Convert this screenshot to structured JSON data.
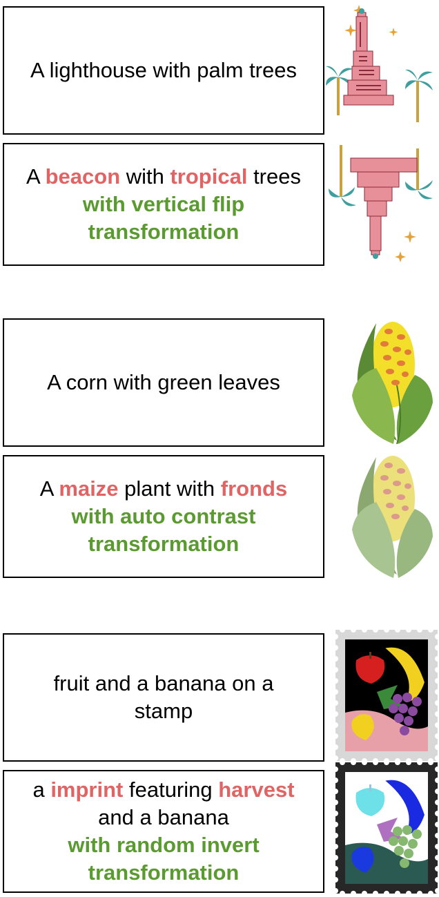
{
  "pairs": [
    {
      "original": "A lighthouse with palm trees",
      "augmented": {
        "a": "A ",
        "w1": "beacon",
        "b": " with ",
        "w2": "tropical",
        "c": " trees",
        "transform": "with vertical flip transformation"
      },
      "icon": "lighthouse-icon"
    },
    {
      "original": "A corn with green leaves",
      "augmented": {
        "a": "A ",
        "w1": "maize",
        "b": " plant with ",
        "w2": "fronds",
        "c": "",
        "transform": "with auto contrast transformation"
      },
      "icon": "corn-icon"
    },
    {
      "original": "fruit and a banana on a stamp",
      "augmented": {
        "a": "a ",
        "w1": "imprint",
        "b": " featuring ",
        "w2": "harvest",
        "c": " and a banana",
        "transform": "with random invert transformation"
      },
      "icon": "fruit-stamp-icon"
    }
  ],
  "colors": {
    "highlight": "#e06464",
    "transform": "#5a9a30",
    "border": "#000000"
  }
}
